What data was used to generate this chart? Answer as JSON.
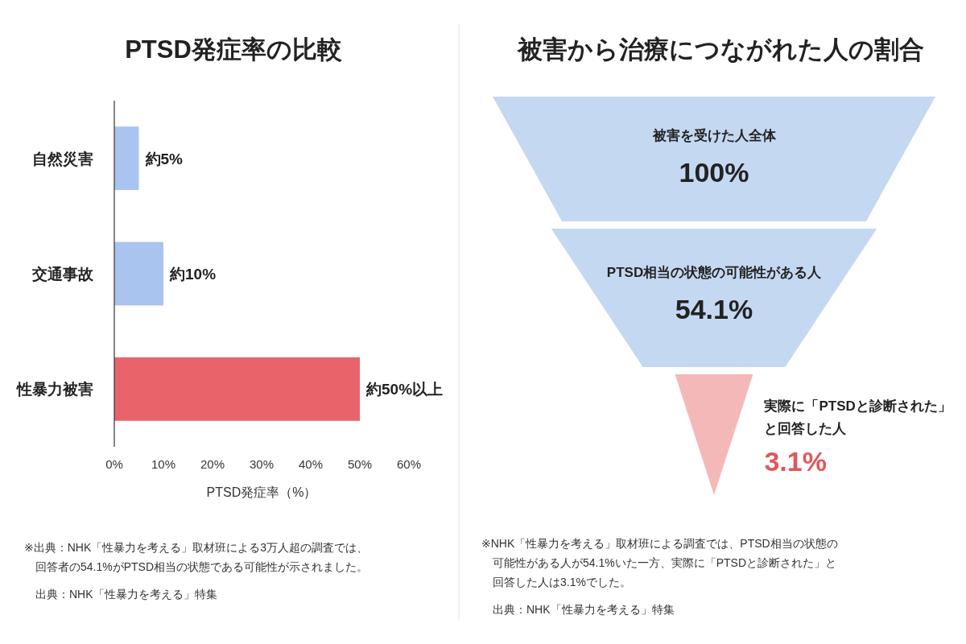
{
  "chart_data": [
    {
      "type": "bar",
      "orientation": "horizontal",
      "title": "PTSD発症率の比較",
      "xlabel": "PTSD発症率（%）",
      "categories": [
        "自然災害",
        "交通事故",
        "性暴力被害"
      ],
      "values": [
        5,
        10,
        50
      ],
      "value_labels": [
        "約5%",
        "約10%",
        "約50%以上"
      ],
      "colors": [
        "#a9c4ee",
        "#a9c4ee",
        "#e8646a"
      ],
      "xlim": [
        0,
        60
      ],
      "xticks": [
        {
          "value": 0,
          "label": "0%"
        },
        {
          "value": 10,
          "label": "10%"
        },
        {
          "value": 20,
          "label": "20%"
        },
        {
          "value": 30,
          "label": "30%"
        },
        {
          "value": 40,
          "label": "40%"
        },
        {
          "value": 50,
          "label": "50%"
        },
        {
          "value": 60,
          "label": "60%"
        }
      ],
      "annotations": [
        "※出典：NHK「性暴力を考える」取材班による3万人超の調査では、",
        "回答者の54.1%がPTSD相当の状態である可能性が示されました。",
        "出典：NHK「性暴力を考える」特集"
      ]
    },
    {
      "type": "other",
      "title": "被害から治療につながれた人の割合",
      "categories": [
        "被害を受けた人全体",
        "PTSD相当の状態の可能性がある人",
        "実際に「PTSDと診断された」と回答した人"
      ],
      "values": [
        100,
        54.1,
        3.1
      ],
      "value_labels": [
        "100%",
        "54.1%",
        "3.1%"
      ],
      "colors": [
        "#c5d8f2",
        "#c5d8f2",
        "#f5b8b8"
      ],
      "annotations": [
        "※NHK「性暴力を考える」取材班による調査では、PTSD相当の状態の",
        "可能性がある人が54.1%いた一方、実際に「PTSDと診断された」と",
        "回答した人は3.1%でした。",
        "出典：NHK「性暴力を考える」特集"
      ]
    }
  ]
}
